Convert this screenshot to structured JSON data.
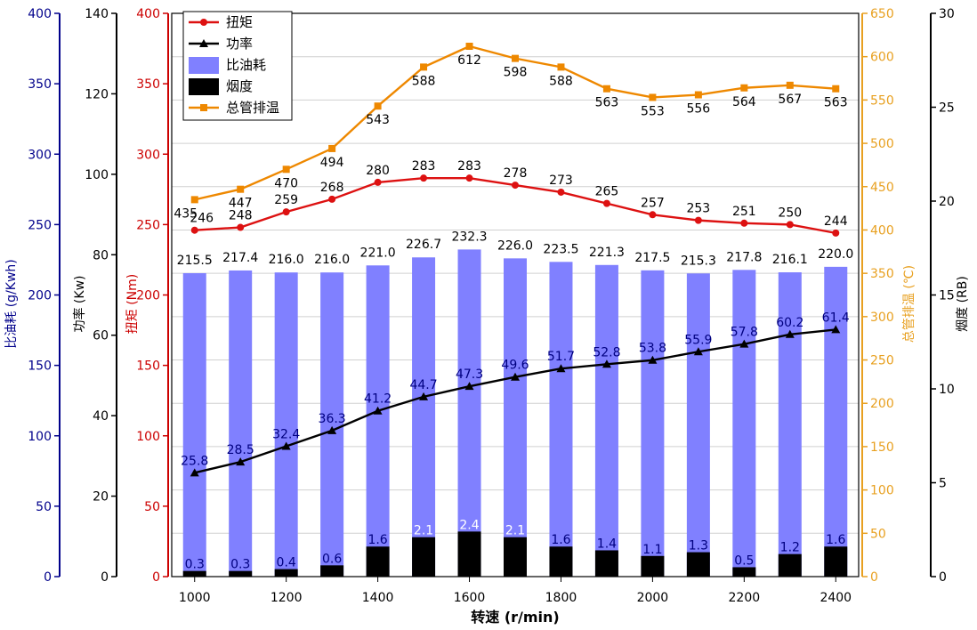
{
  "chart_data": {
    "type": "bar",
    "xlabel": "转速 (r/min)",
    "x": [
      1000,
      1100,
      1200,
      1300,
      1400,
      1500,
      1600,
      1700,
      1800,
      1900,
      2000,
      2100,
      2200,
      2300,
      2400
    ],
    "x_ticks": [
      "1000",
      "1200",
      "1400",
      "1600",
      "1800",
      "2000",
      "2200",
      "2400"
    ],
    "xlim": [
      950,
      2450
    ],
    "grid": true,
    "legend_position": "top-left",
    "axes": [
      {
        "id": "bsfc",
        "label": "比油耗 (g/Kwh)",
        "ylim": [
          0,
          400
        ],
        "ticks": [
          "0",
          "50",
          "100",
          "150",
          "200",
          "250",
          "300",
          "350",
          "400"
        ],
        "color": "#00008b"
      },
      {
        "id": "power",
        "label": "功率 (Kw)",
        "ylim": [
          0,
          140
        ],
        "ticks": [
          "0",
          "20",
          "40",
          "60",
          "80",
          "100",
          "120",
          "140"
        ],
        "color": "#000000"
      },
      {
        "id": "torque",
        "label": "扭矩 (Nm)",
        "ylim": [
          0,
          400
        ],
        "ticks": [
          "0",
          "50",
          "100",
          "150",
          "200",
          "250",
          "300",
          "350",
          "400"
        ],
        "color": "#cc0000"
      },
      {
        "id": "exhaust",
        "label": "总管排温 (℃)",
        "ylim": [
          0,
          650
        ],
        "ticks": [
          "0",
          "50",
          "100",
          "150",
          "200",
          "250",
          "300",
          "350",
          "400",
          "450",
          "500",
          "550",
          "600",
          "650"
        ],
        "color": "#e8a020"
      },
      {
        "id": "smoke",
        "label": "烟度 (RB)",
        "ylim": [
          0,
          30
        ],
        "ticks": [
          "0",
          "5",
          "10",
          "15",
          "20",
          "25",
          "30"
        ],
        "color": "#000000"
      }
    ],
    "series": [
      {
        "name": "扭矩",
        "kind": "line",
        "axis": "torque",
        "color": "#dd1111",
        "marker": "circle",
        "values": [
          246,
          248,
          259,
          268,
          280,
          283,
          283,
          278,
          273,
          265,
          257,
          253,
          251,
          250,
          244
        ],
        "labels": [
          "246",
          "248",
          "259",
          "268",
          "280",
          "283",
          "283",
          "278",
          "273",
          "265",
          "257",
          "253",
          "251",
          "250",
          "244"
        ]
      },
      {
        "name": "功率",
        "kind": "line",
        "axis": "power",
        "color": "#000000",
        "marker": "triangle",
        "values": [
          25.8,
          28.5,
          32.4,
          36.3,
          41.2,
          44.7,
          47.3,
          49.6,
          51.7,
          52.8,
          53.8,
          55.9,
          57.8,
          60.2,
          61.4
        ],
        "labels": [
          "25.8",
          "28.5",
          "32.4",
          "36.3",
          "41.2",
          "44.7",
          "47.3",
          "49.6",
          "51.7",
          "52.8",
          "53.8",
          "55.9",
          "57.8",
          "60.2",
          "61.4"
        ]
      },
      {
        "name": "比油耗",
        "kind": "bar",
        "axis": "bsfc",
        "color": "#8080ff",
        "values": [
          215.5,
          217.4,
          216.0,
          216.0,
          221.0,
          226.7,
          232.3,
          226.0,
          223.5,
          221.3,
          217.5,
          215.3,
          217.8,
          216.1,
          220.0
        ],
        "labels": [
          "215.5",
          "217.4",
          "216.0",
          "216.0",
          "221.0",
          "226.7",
          "232.3",
          "226.0",
          "223.5",
          "221.3",
          "217.5",
          "215.3",
          "217.8",
          "216.1",
          "220.0"
        ]
      },
      {
        "name": "烟度",
        "kind": "bar",
        "axis": "smoke",
        "color": "#000000",
        "values": [
          0.3,
          0.3,
          0.4,
          0.6,
          1.6,
          2.1,
          2.4,
          2.1,
          1.6,
          1.4,
          1.1,
          1.3,
          0.5,
          1.2,
          1.6
        ],
        "labels": [
          "0.3",
          "0.3",
          "0.4",
          "0.6",
          "1.6",
          "2.1",
          "2.4",
          "2.1",
          "1.6",
          "1.4",
          "1.1",
          "1.3",
          "0.5",
          "1.2",
          "1.6"
        ]
      },
      {
        "name": "总管排温",
        "kind": "line",
        "axis": "exhaust",
        "color": "#ee8800",
        "marker": "square",
        "values": [
          435,
          447,
          470,
          494,
          543,
          588,
          612,
          598,
          588,
          563,
          553,
          556,
          564,
          567,
          563
        ],
        "labels": [
          "435",
          "447",
          "470",
          "494",
          "543",
          "588",
          "612",
          "598",
          "588",
          "563",
          "553",
          "556",
          "564",
          "567",
          "563"
        ]
      }
    ]
  }
}
